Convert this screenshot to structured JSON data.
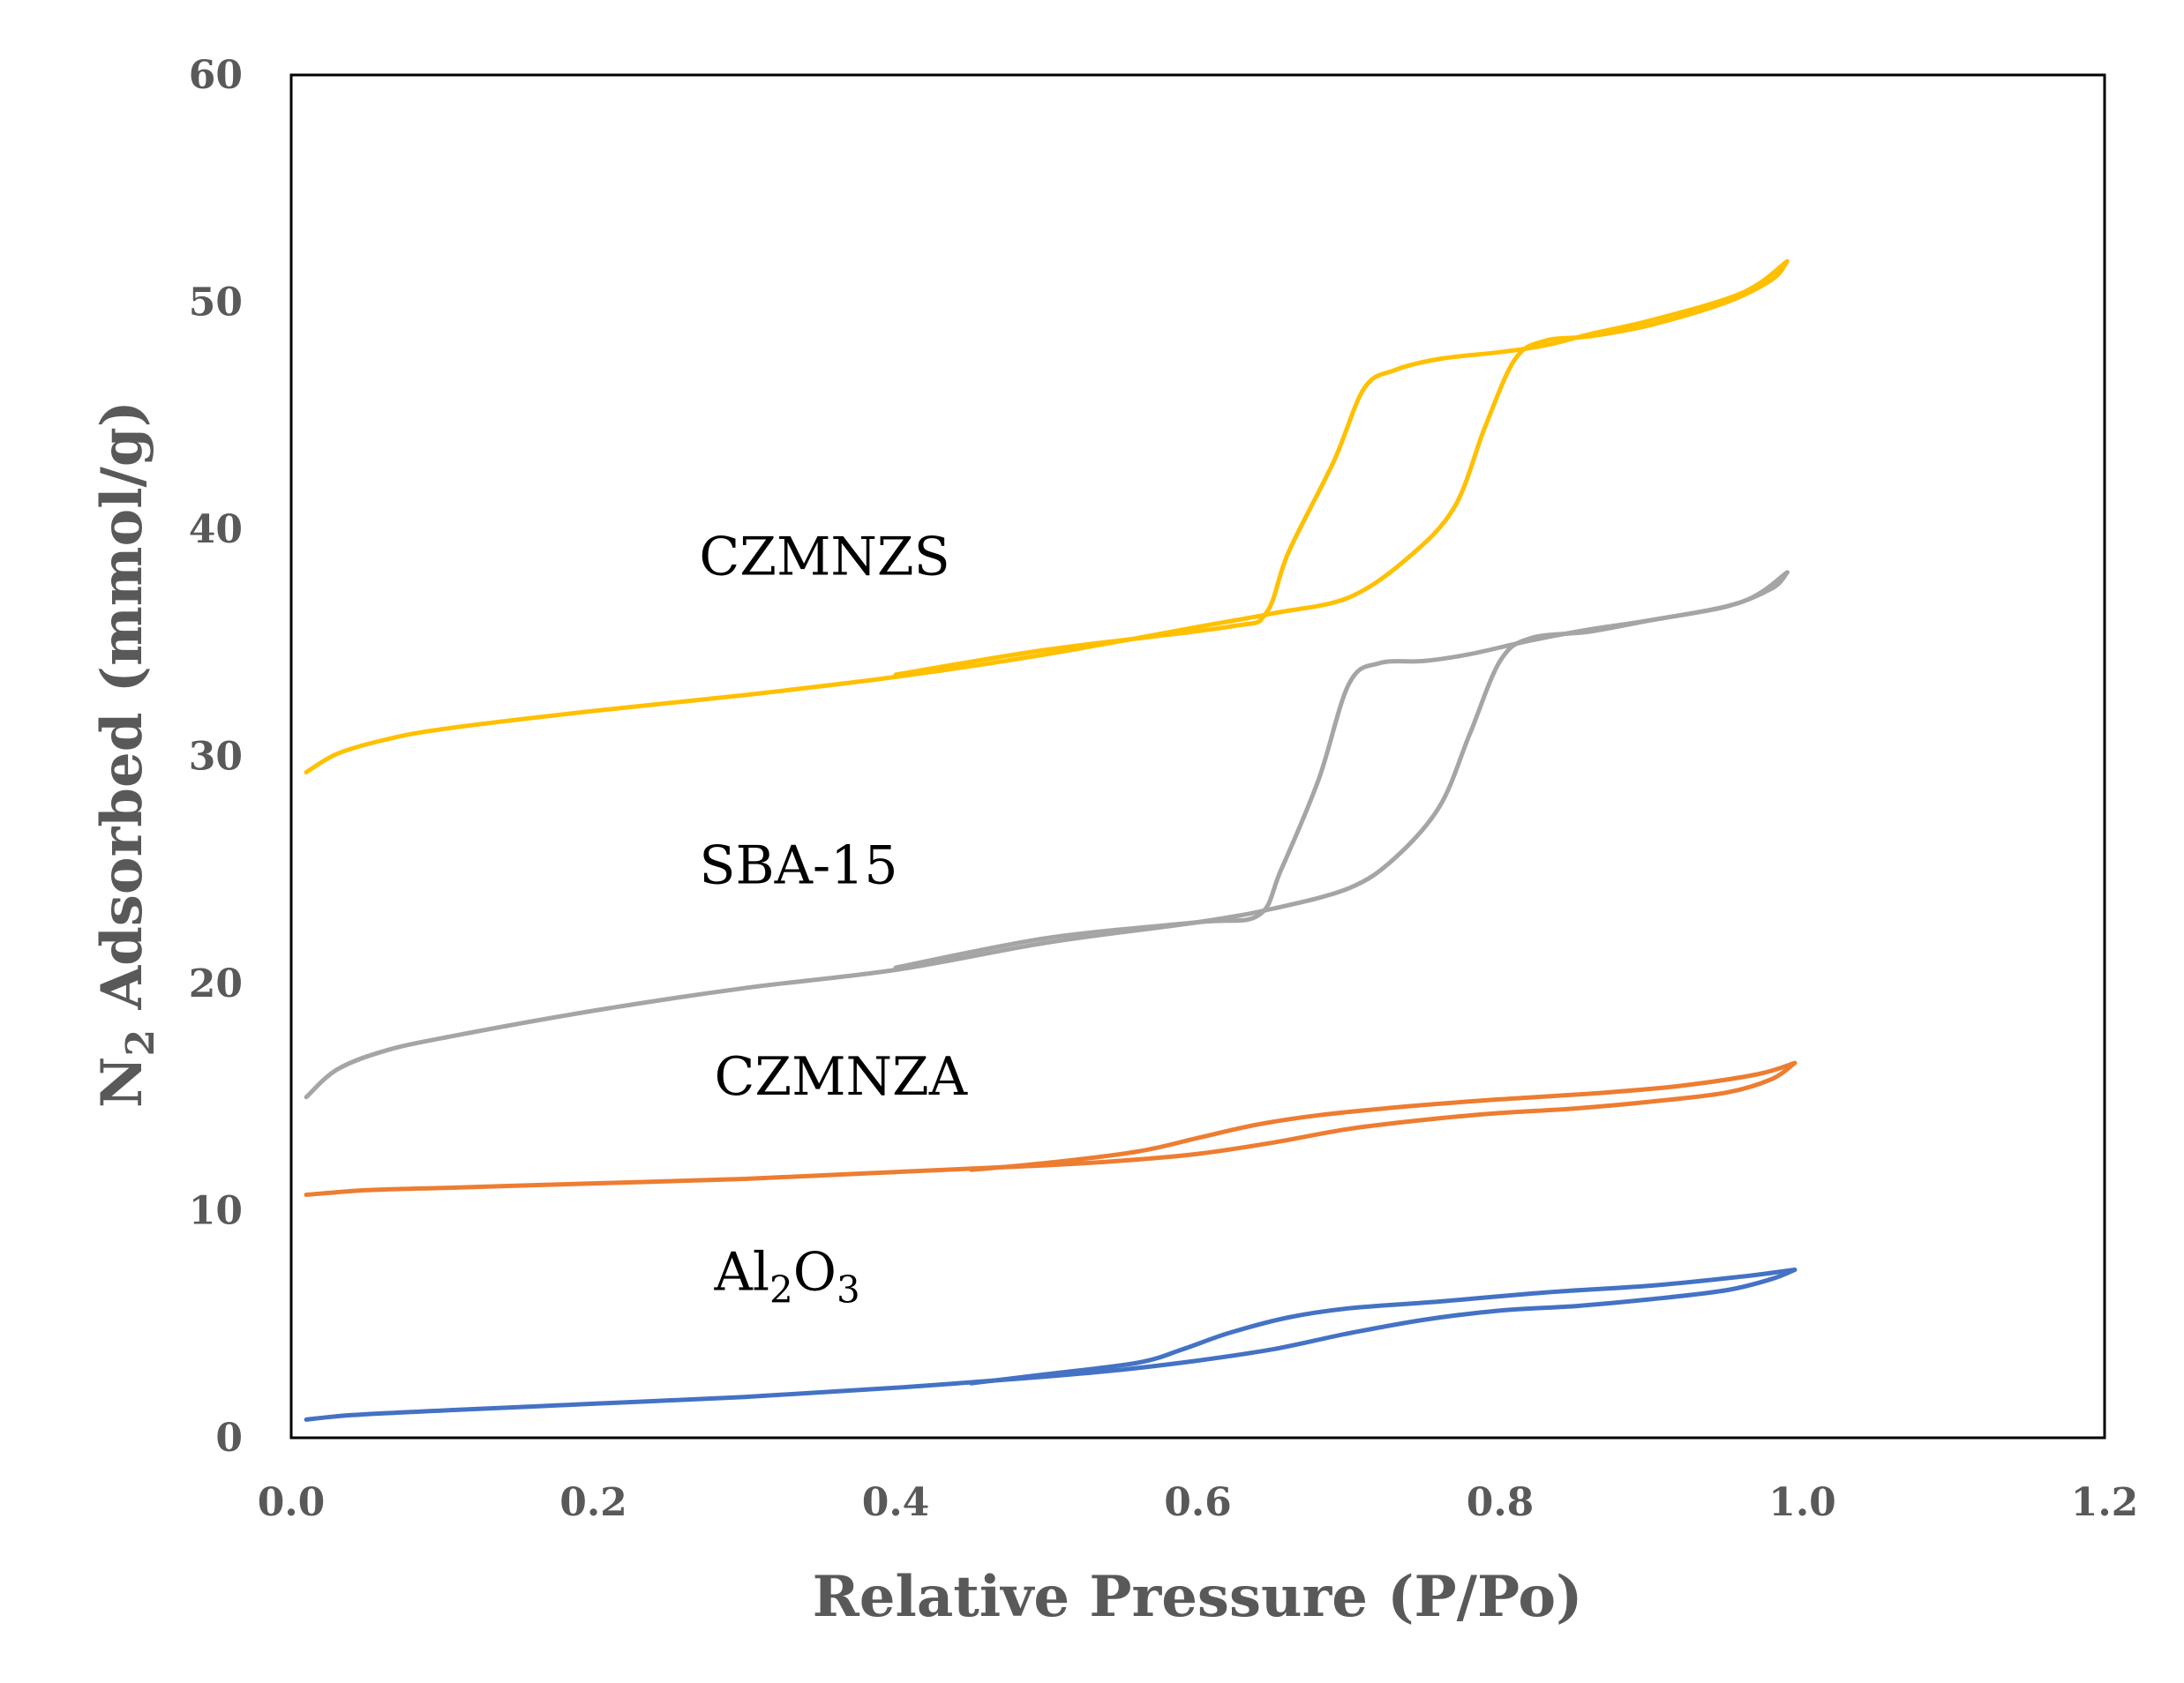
{
  "chart_data": {
    "type": "line",
    "title": "",
    "xlabel": "Relative Pressure (P/Po)",
    "ylabel": {
      "prefix": "N",
      "sub": "2",
      "rest": " Adsorbed (mmol/g)"
    },
    "xlim": [
      0,
      1.2
    ],
    "ylim": [
      0,
      60
    ],
    "xticks": [
      "0.0",
      "0.2",
      "0.4",
      "0.6",
      "0.8",
      "1.0",
      "1.2"
    ],
    "yticks": [
      "0",
      "10",
      "20",
      "30",
      "40",
      "50",
      "60"
    ],
    "grid": false,
    "legend": "none",
    "series": [
      {
        "name": "CZMNZS",
        "color": "#FFC000",
        "label": {
          "at": [
            0.27,
            38.0
          ],
          "parts": [
            {
              "t": "CZMNZS"
            }
          ]
        },
        "adsorption": [
          [
            0.01,
            29.3
          ],
          [
            0.03,
            30.1
          ],
          [
            0.06,
            30.7
          ],
          [
            0.1,
            31.2
          ],
          [
            0.2,
            32.0
          ],
          [
            0.3,
            32.7
          ],
          [
            0.4,
            33.5
          ],
          [
            0.5,
            34.5
          ],
          [
            0.6,
            35.7
          ],
          [
            0.65,
            36.3
          ],
          [
            0.7,
            37.0
          ],
          [
            0.74,
            38.8
          ],
          [
            0.77,
            41.0
          ],
          [
            0.79,
            44.5
          ],
          [
            0.81,
            47.5
          ],
          [
            0.83,
            48.3
          ],
          [
            0.86,
            48.5
          ],
          [
            0.9,
            49.0
          ],
          [
            0.95,
            50.0
          ],
          [
            0.98,
            51.0
          ],
          [
            0.99,
            51.8
          ]
        ],
        "desorption": [
          [
            0.99,
            51.8
          ],
          [
            0.96,
            50.4
          ],
          [
            0.9,
            49.2
          ],
          [
            0.86,
            48.6
          ],
          [
            0.83,
            48.1
          ],
          [
            0.8,
            47.8
          ],
          [
            0.76,
            47.5
          ],
          [
            0.73,
            47.0
          ],
          [
            0.71,
            46.2
          ],
          [
            0.69,
            43.0
          ],
          [
            0.66,
            39.0
          ],
          [
            0.645,
            36.3
          ],
          [
            0.62,
            35.7
          ],
          [
            0.5,
            34.7
          ],
          [
            0.4,
            33.6
          ]
        ]
      },
      {
        "name": "SBA-15",
        "color": "#A5A5A5",
        "label": {
          "at": [
            0.27,
            24.4
          ],
          "parts": [
            {
              "t": "SBA-15"
            }
          ]
        },
        "adsorption": [
          [
            0.01,
            15.0
          ],
          [
            0.03,
            16.2
          ],
          [
            0.06,
            17.0
          ],
          [
            0.1,
            17.6
          ],
          [
            0.2,
            18.8
          ],
          [
            0.3,
            19.8
          ],
          [
            0.4,
            20.6
          ],
          [
            0.5,
            21.8
          ],
          [
            0.6,
            22.7
          ],
          [
            0.65,
            23.3
          ],
          [
            0.7,
            24.2
          ],
          [
            0.73,
            25.5
          ],
          [
            0.76,
            27.8
          ],
          [
            0.78,
            31.0
          ],
          [
            0.8,
            34.2
          ],
          [
            0.82,
            35.2
          ],
          [
            0.86,
            35.5
          ],
          [
            0.9,
            36.0
          ],
          [
            0.95,
            36.6
          ],
          [
            0.98,
            37.4
          ],
          [
            0.99,
            38.1
          ]
        ],
        "desorption": [
          [
            0.99,
            38.1
          ],
          [
            0.96,
            36.8
          ],
          [
            0.9,
            36.0
          ],
          [
            0.86,
            35.6
          ],
          [
            0.82,
            35.1
          ],
          [
            0.78,
            34.5
          ],
          [
            0.75,
            34.2
          ],
          [
            0.72,
            34.1
          ],
          [
            0.7,
            33.2
          ],
          [
            0.68,
            29.0
          ],
          [
            0.655,
            25.0
          ],
          [
            0.64,
            23.0
          ],
          [
            0.6,
            22.7
          ],
          [
            0.5,
            22.0
          ],
          [
            0.4,
            20.7
          ]
        ]
      },
      {
        "name": "CZMNZA",
        "color": "#ED7D31",
        "label": {
          "at": [
            0.28,
            15.1
          ],
          "parts": [
            {
              "t": "CZMNZA"
            }
          ]
        },
        "adsorption": [
          [
            0.01,
            10.7
          ],
          [
            0.05,
            10.9
          ],
          [
            0.1,
            11.0
          ],
          [
            0.2,
            11.2
          ],
          [
            0.3,
            11.4
          ],
          [
            0.4,
            11.7
          ],
          [
            0.5,
            12.0
          ],
          [
            0.55,
            12.2
          ],
          [
            0.6,
            12.5
          ],
          [
            0.65,
            13.0
          ],
          [
            0.7,
            13.6
          ],
          [
            0.75,
            14.0
          ],
          [
            0.8,
            14.3
          ],
          [
            0.85,
            14.5
          ],
          [
            0.9,
            14.8
          ],
          [
            0.95,
            15.2
          ],
          [
            0.98,
            15.8
          ],
          [
            0.995,
            16.5
          ]
        ],
        "desorption": [
          [
            0.995,
            16.5
          ],
          [
            0.97,
            16.0
          ],
          [
            0.92,
            15.5
          ],
          [
            0.87,
            15.2
          ],
          [
            0.8,
            14.9
          ],
          [
            0.74,
            14.6
          ],
          [
            0.68,
            14.2
          ],
          [
            0.64,
            13.8
          ],
          [
            0.6,
            13.2
          ],
          [
            0.56,
            12.6
          ],
          [
            0.5,
            12.1
          ],
          [
            0.45,
            11.8
          ]
        ]
      },
      {
        "name": "Al2O3",
        "color": "#4472C4",
        "label": {
          "at": [
            0.28,
            6.5
          ],
          "parts": [
            {
              "t": "Al"
            },
            {
              "t": "2",
              "sub": true
            },
            {
              "t": "O"
            },
            {
              "t": "3",
              "sub": true
            }
          ]
        },
        "adsorption": [
          [
            0.01,
            0.8
          ],
          [
            0.04,
            1.0
          ],
          [
            0.1,
            1.2
          ],
          [
            0.2,
            1.5
          ],
          [
            0.3,
            1.8
          ],
          [
            0.4,
            2.2
          ],
          [
            0.5,
            2.7
          ],
          [
            0.55,
            3.0
          ],
          [
            0.6,
            3.4
          ],
          [
            0.65,
            3.9
          ],
          [
            0.7,
            4.6
          ],
          [
            0.75,
            5.2
          ],
          [
            0.8,
            5.6
          ],
          [
            0.85,
            5.8
          ],
          [
            0.9,
            6.1
          ],
          [
            0.95,
            6.5
          ],
          [
            0.98,
            7.0
          ],
          [
            0.995,
            7.4
          ]
        ],
        "desorption": [
          [
            0.995,
            7.4
          ],
          [
            0.96,
            7.1
          ],
          [
            0.9,
            6.7
          ],
          [
            0.83,
            6.4
          ],
          [
            0.76,
            6.0
          ],
          [
            0.7,
            5.7
          ],
          [
            0.66,
            5.3
          ],
          [
            0.62,
            4.6
          ],
          [
            0.59,
            3.9
          ],
          [
            0.56,
            3.3
          ],
          [
            0.5,
            2.8
          ],
          [
            0.45,
            2.4
          ]
        ]
      }
    ]
  }
}
